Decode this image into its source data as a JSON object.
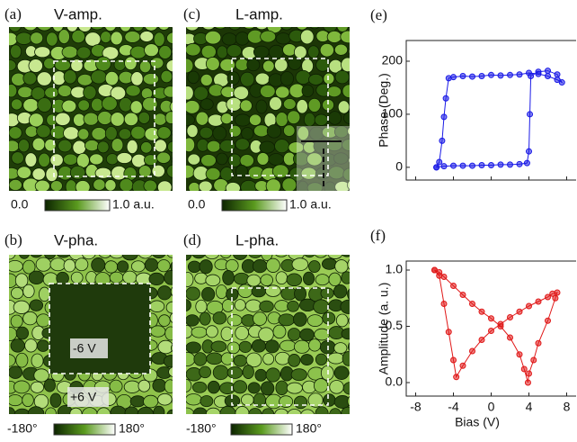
{
  "panels": [
    {
      "label": "(a)",
      "title": "V-amp.",
      "colorbar": {
        "min": "0.0",
        "max": "1.0 a.u."
      }
    },
    {
      "label": "(c)",
      "title": "L-amp.",
      "colorbar": {
        "min": "0.0",
        "max": "1.0 a.u."
      }
    },
    {
      "label": "(b)",
      "title": "V-pha.",
      "colorbar": {
        "min": "-180°",
        "max": "180°"
      },
      "annotations": [
        "-6 V",
        "+6 V"
      ]
    },
    {
      "label": "(d)",
      "title": "L-pha.",
      "colorbar": {
        "min": "-180°",
        "max": "180°"
      }
    }
  ],
  "chart_data": [
    {
      "type": "line",
      "label": "(e)",
      "y_label": "Phase (Deg.)",
      "color": "#1a1ae6",
      "x": [
        -5.8,
        -5,
        -4,
        -3,
        -2,
        -1,
        0,
        1,
        2,
        3,
        3.8,
        4.0,
        4.1,
        4.2,
        5,
        6,
        7,
        7.5,
        7,
        6,
        5,
        4,
        3,
        2,
        1,
        0,
        -1,
        -2,
        -3,
        -4,
        -4.5,
        -4.8,
        -5,
        -5.2,
        -5.5,
        -5.8
      ],
      "values": [
        0,
        2,
        3,
        3,
        3,
        4,
        4,
        5,
        5,
        6,
        8,
        30,
        100,
        172,
        180,
        182,
        175,
        160,
        165,
        172,
        176,
        178,
        175,
        174,
        173,
        174,
        172,
        171,
        172,
        170,
        168,
        130,
        95,
        50,
        10,
        0
      ],
      "xlim": [
        -9,
        9
      ],
      "xticks": [
        -8,
        -4,
        0,
        4,
        8
      ],
      "ylim": [
        -24,
        239
      ],
      "yticks": [
        0,
        100,
        200
      ]
    },
    {
      "type": "line",
      "label": "(f)",
      "x_label": "Bias (V)",
      "y_label": "Amplitude (a. u.)",
      "color": "#e01818",
      "x": [
        -6,
        -5.5,
        -5,
        -4.5,
        -4,
        -3.7,
        -3,
        -2,
        -1,
        0,
        1,
        2,
        3,
        4,
        5,
        6,
        6.5,
        7,
        6.8,
        6,
        5,
        4.5,
        4,
        3.9,
        3.5,
        3,
        2,
        1,
        0,
        -1,
        -2,
        -3,
        -4,
        -5,
        -5.5,
        -6
      ],
      "values": [
        1.0,
        0.95,
        0.7,
        0.45,
        0.2,
        0.05,
        0.15,
        0.28,
        0.38,
        0.46,
        0.52,
        0.58,
        0.63,
        0.68,
        0.72,
        0.76,
        0.79,
        0.8,
        0.75,
        0.55,
        0.35,
        0.2,
        0.08,
        0.0,
        0.12,
        0.25,
        0.4,
        0.5,
        0.57,
        0.63,
        0.7,
        0.78,
        0.86,
        0.94,
        0.98,
        1.0
      ],
      "xlim": [
        -9,
        9
      ],
      "xticks": [
        -8,
        -4,
        0,
        4,
        8
      ],
      "ylim": [
        -0.12,
        1.08
      ],
      "yticks": [
        {
          "value": 0,
          "label": "0.0"
        },
        {
          "value": 0.5,
          "label": "0.5"
        },
        {
          "value": 1,
          "label": "1.0"
        }
      ]
    }
  ]
}
